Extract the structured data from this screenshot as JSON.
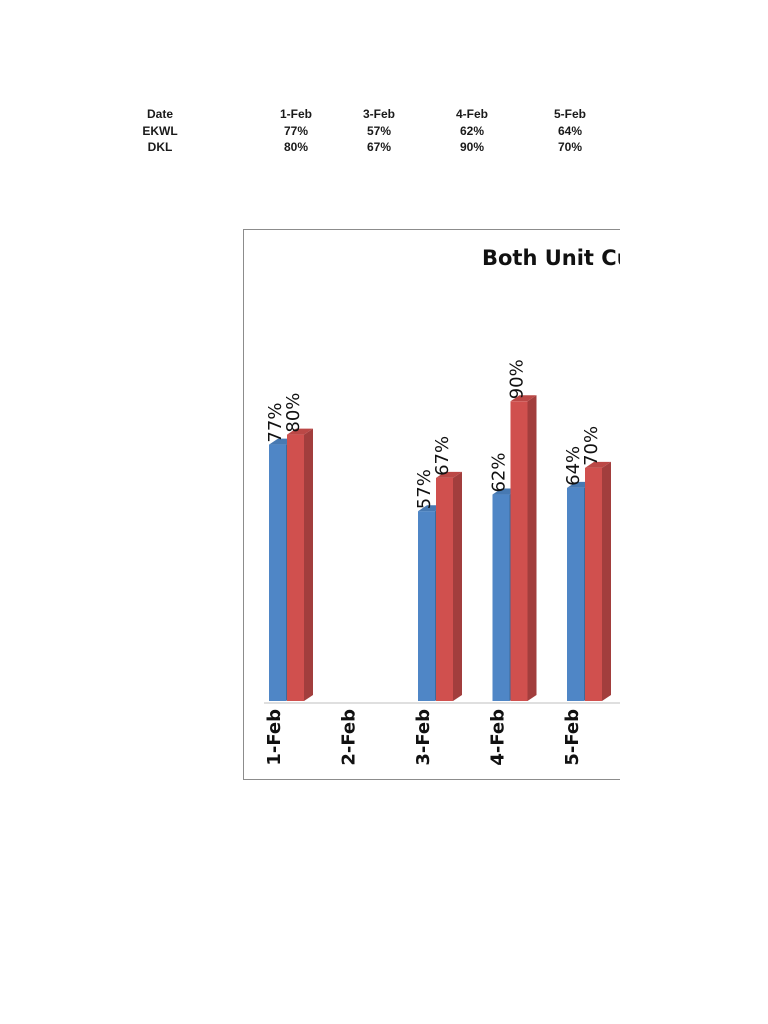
{
  "table": {
    "header_label": "Date",
    "rows": [
      {
        "label": "EKWL",
        "values": [
          "77%",
          "57%",
          "62%",
          "64%"
        ]
      },
      {
        "label": "DKL",
        "values": [
          "80%",
          "67%",
          "90%",
          "70%"
        ]
      }
    ],
    "dates": [
      "1-Feb",
      "3-Feb",
      "4-Feb",
      "5-Feb"
    ]
  },
  "chart_data": {
    "type": "bar",
    "title": "Both Unit Cut",
    "categories": [
      "1-Feb",
      "2-Feb",
      "3-Feb",
      "4-Feb",
      "5-Feb"
    ],
    "series": [
      {
        "name": "EKWL",
        "color": "#4f86c6",
        "values": [
          77,
          null,
          57,
          62,
          64
        ],
        "labels": [
          "77%",
          "",
          "57%",
          "62%",
          "64%"
        ]
      },
      {
        "name": "DKL",
        "color": "#d0504e",
        "values": [
          80,
          null,
          67,
          90,
          70
        ],
        "labels": [
          "80%",
          "",
          "67%",
          "90%",
          "70%"
        ]
      }
    ],
    "ylim": [
      0,
      100
    ],
    "xlabel": "",
    "ylabel": "",
    "style": "3d-clustered-column",
    "grid": false,
    "legend": "none",
    "axis_labels_rotated": true
  }
}
